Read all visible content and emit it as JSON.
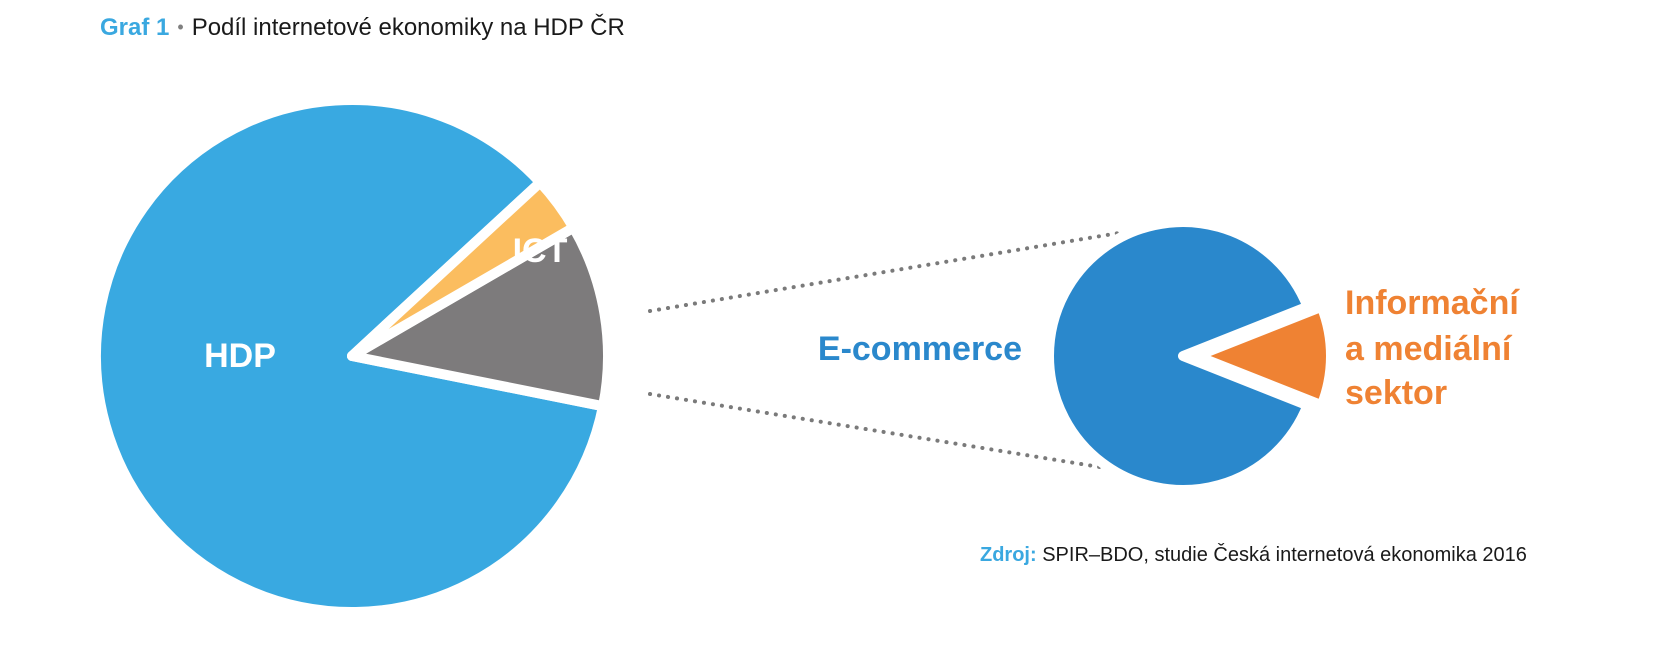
{
  "header": {
    "figure_label": "Graf 1",
    "bullet": "•",
    "title": "Podíl internetové ekonomiky na HDP ČR"
  },
  "source": {
    "label": "Zdroj:",
    "text": "SPIR–BDO, studie Česká internetová ekonomika 2016"
  },
  "colors": {
    "hdp": "#39a9e1",
    "ict": "#7d7b7c",
    "internet": "#fbbd5f",
    "ecommerce": "#2a88cc",
    "info_media": "#ef8233",
    "connector": "#7a7a7a"
  },
  "chart_data": [
    {
      "type": "pie",
      "title": "",
      "slices": [
        {
          "label": "HDP",
          "value": 85.0,
          "color": "#39a9e1"
        },
        {
          "label": "ICT",
          "value": 11.5,
          "color": "#7d7b7c"
        },
        {
          "label": "",
          "value": 3.5,
          "color": "#fbbd5f",
          "exploded_into_next_chart": true
        }
      ]
    },
    {
      "type": "pie",
      "title": "",
      "slices": [
        {
          "label": "E-commerce",
          "value": 88.0,
          "color": "#2a88cc"
        },
        {
          "label": "Informační a mediální sektor",
          "value": 12.0,
          "color": "#ef8233"
        }
      ]
    }
  ]
}
